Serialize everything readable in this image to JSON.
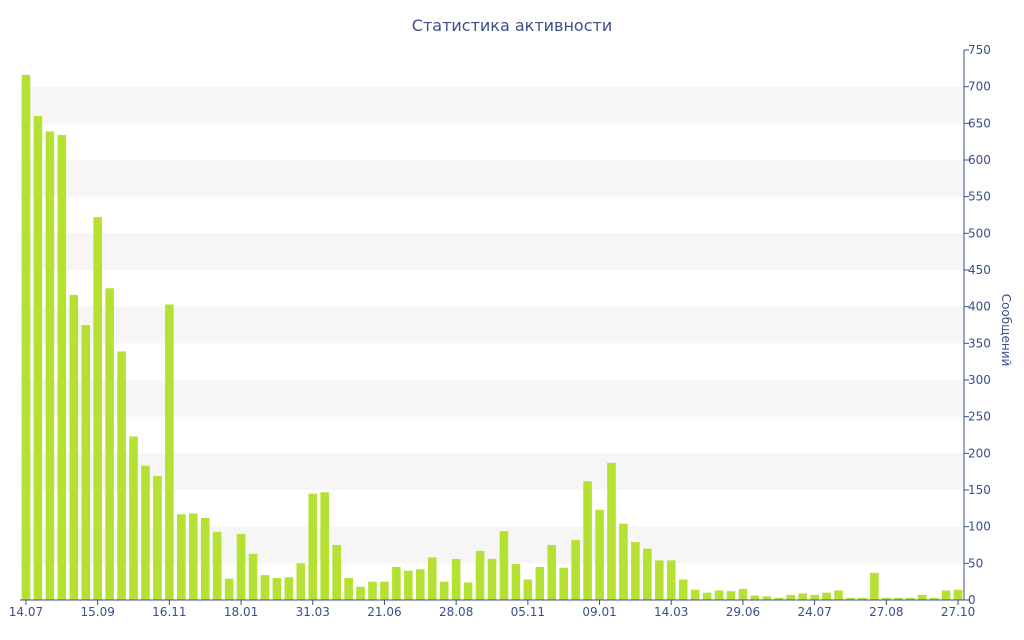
{
  "chart_data": {
    "type": "bar",
    "title": "Статистика активности",
    "ylabel": "Сообщений",
    "ylim": [
      0,
      750
    ],
    "yticks": [
      0,
      50,
      100,
      150,
      200,
      250,
      300,
      350,
      400,
      450,
      500,
      550,
      600,
      650,
      700,
      750
    ],
    "x_tick_labels": [
      {
        "index": 0,
        "label": "14.07"
      },
      {
        "index": 6,
        "label": "15.09"
      },
      {
        "index": 12,
        "label": "16.11"
      },
      {
        "index": 18,
        "label": "18.01"
      },
      {
        "index": 24,
        "label": "31.03"
      },
      {
        "index": 30,
        "label": "21.06"
      },
      {
        "index": 36,
        "label": "28.08"
      },
      {
        "index": 42,
        "label": "05.11"
      },
      {
        "index": 48,
        "label": "09.01"
      },
      {
        "index": 54,
        "label": "14.03"
      },
      {
        "index": 60,
        "label": "29.06"
      },
      {
        "index": 66,
        "label": "24.07"
      },
      {
        "index": 72,
        "label": "27.08"
      },
      {
        "index": 78,
        "label": "27.10"
      }
    ],
    "values": [
      716,
      660,
      639,
      634,
      416,
      375,
      522,
      425,
      339,
      223,
      183,
      169,
      403,
      117,
      118,
      112,
      93,
      29,
      90,
      63,
      34,
      30,
      31,
      50,
      145,
      147,
      75,
      30,
      18,
      25,
      25,
      45,
      40,
      42,
      58,
      25,
      56,
      24,
      67,
      56,
      94,
      49,
      28,
      45,
      75,
      44,
      82,
      162,
      123,
      187,
      104,
      79,
      70,
      54,
      54,
      28,
      14,
      10,
      13,
      12,
      15,
      6,
      5,
      3,
      7,
      9,
      7,
      10,
      13,
      3,
      3,
      37,
      3,
      3,
      3,
      7,
      3,
      13,
      14
    ],
    "bar_color": "#b5e133",
    "band_color": "#f6f6f6",
    "text_color": "#3a4f8a",
    "grid": "alternating-bands",
    "y_axis_position": "right"
  }
}
